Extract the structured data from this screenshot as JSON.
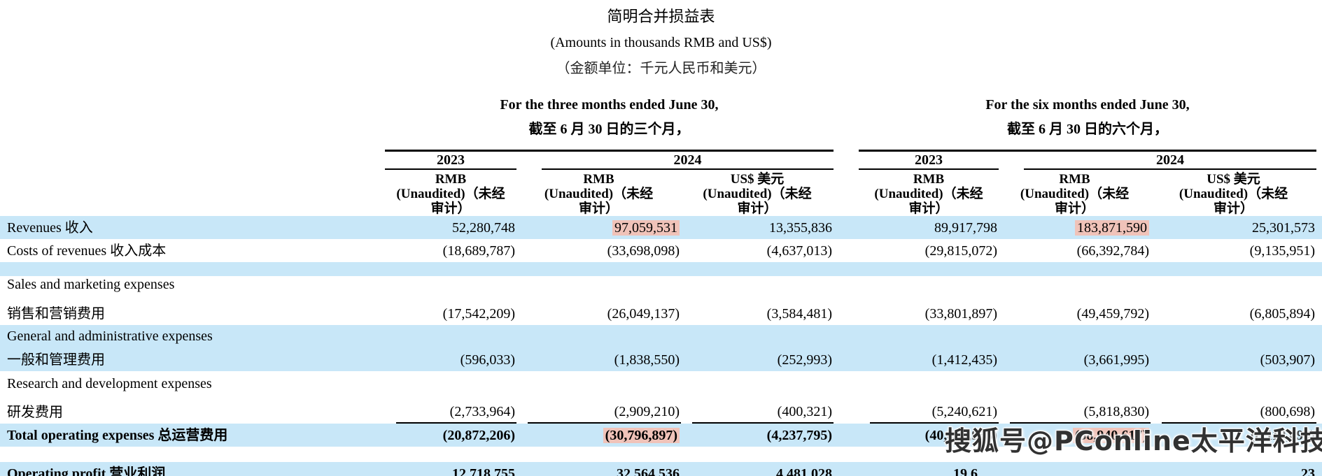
{
  "title": {
    "line1": "简明合并损益表",
    "line2": "(Amounts in thousands RMB and US$)",
    "line3": "（金额单位：千元人民币和美元）"
  },
  "periods": [
    {
      "en": "For the three months ended June 30,",
      "zh": "截至 6 月 30 日的三个月，"
    },
    {
      "en": "For the six months ended June 30,",
      "zh": "截至 6 月 30 日的六个月，"
    }
  ],
  "years": [
    "2023",
    "2024",
    "2023",
    "2024"
  ],
  "columns": [
    {
      "currency": "RMB",
      "l2": "(Unaudited)（未经",
      "l3": "审计）"
    },
    {
      "currency": "RMB",
      "l2": "(Unaudited)（未经",
      "l3": "审计）"
    },
    {
      "currency": "US$ 美元",
      "l2": "(Unaudited)（未经",
      "l3": "审计）"
    },
    {
      "currency": "RMB",
      "l2": "(Unaudited)（未经",
      "l3": "审计）"
    },
    {
      "currency": "RMB",
      "l2": "(Unaudited)（未经",
      "l3": "审计）"
    },
    {
      "currency": "US$ 美元",
      "l2": "(Unaudited)（未经",
      "l3": "审计）"
    }
  ],
  "rows": [
    {
      "id": "revenues",
      "band": true,
      "label": "Revenues 收入",
      "values": [
        "52,280,748",
        "97,059,531",
        "13,355,836",
        "89,917,798",
        "183,871,590",
        "25,301,573"
      ],
      "highlight": [
        1,
        4
      ]
    },
    {
      "id": "costs",
      "label": "Costs of revenues 收入成本",
      "values": [
        "(18,689,787)",
        "(33,698,098)",
        "(4,637,013)",
        "(29,815,072)",
        "(66,392,784)",
        "(9,135,951)"
      ]
    },
    {
      "id": "spacer1",
      "spacer": true,
      "band": true
    },
    {
      "id": "sales-label",
      "label": "Sales and marketing expenses"
    },
    {
      "id": "sales-values",
      "label": "销售和营销费用",
      "values": [
        "(17,542,209)",
        "(26,049,137)",
        "(3,584,481)",
        "(33,801,897)",
        "(49,459,792)",
        "(6,805,894)"
      ]
    },
    {
      "id": "ga-label",
      "band": true,
      "label": "General and administrative expenses"
    },
    {
      "id": "ga-values",
      "band": true,
      "label": "一般和管理费用",
      "values": [
        "(596,033)",
        "(1,838,550)",
        "(252,993)",
        "(1,412,435)",
        "(3,661,995)",
        "(503,907)"
      ]
    },
    {
      "id": "rd-label",
      "label": "Research and development expenses"
    },
    {
      "id": "rd-values",
      "label": "研发费用",
      "sumline": true,
      "values": [
        "(2,733,964)",
        "(2,909,210)",
        "(400,321)",
        "(5,240,621)",
        "(5,818,830)",
        "(800,698)"
      ]
    },
    {
      "id": "total",
      "band": true,
      "bold": true,
      "label": "Total operating expenses 总运营费用",
      "values": [
        "(20,872,206)",
        "(30,796,897)",
        "(4,237,795)",
        "(40,454,953)",
        "(58,940,617)",
        "(8,110,499)"
      ],
      "highlight": [
        1,
        4
      ]
    },
    {
      "id": "gap1",
      "spacer": true
    },
    {
      "id": "operating",
      "band": true,
      "bold": true,
      "label": "Operating profit 营业利润",
      "values": [
        "12,718,755",
        "32,564,536",
        "4,481,028",
        "19,6",
        "",
        "23"
      ]
    },
    {
      "id": "tail",
      "spacer": true,
      "band": true
    }
  ],
  "watermark": "搜狐号@PConline太平洋科技",
  "colors": {
    "band": "#c8e7f8",
    "highlight": "#f0c3b9"
  }
}
